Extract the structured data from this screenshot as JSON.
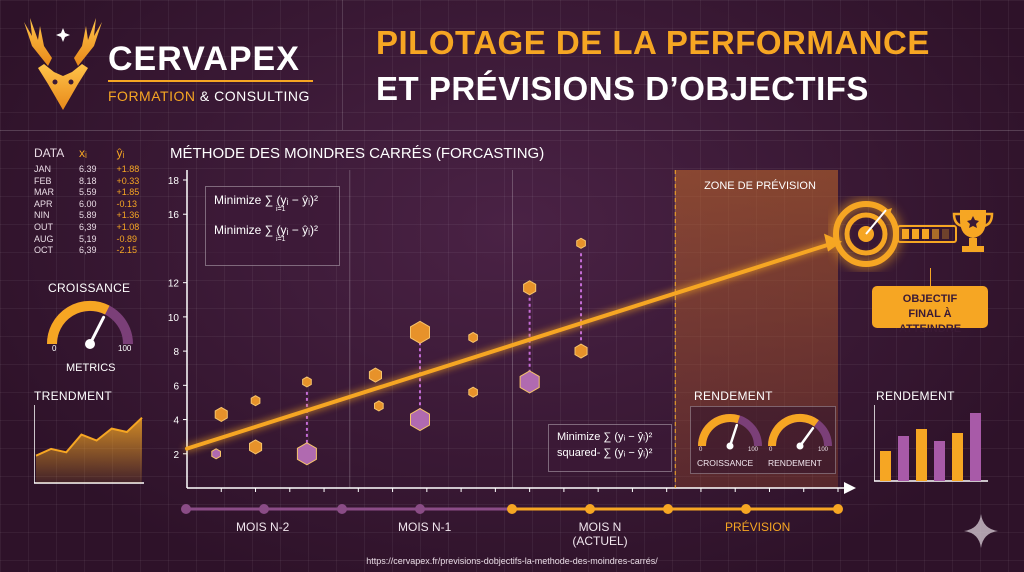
{
  "header": {
    "brand": "CERVAPEX",
    "brand_sub_1": "FORMATION",
    "brand_sub_2": "& CONSULTING",
    "title_line1": "PILOTAGE DE LA PERFORMANCE",
    "title_line2": "ET PRÉVISIONS D’OBJECTIFS"
  },
  "data_table": {
    "headers": [
      "DATA",
      "xᵢ",
      "ŷᵢ"
    ],
    "rows": [
      [
        "JAN",
        "6.39",
        "+1.88"
      ],
      [
        "FEB",
        "8.18",
        "+0.33"
      ],
      [
        "MAR",
        "5.59",
        "+1.85"
      ],
      [
        "APR",
        "6.00",
        "-0.13"
      ],
      [
        "NIN",
        "5.89",
        "+1.36"
      ],
      [
        "OUT",
        "6,39",
        "+1.08"
      ],
      [
        "AUG",
        "5,19",
        "-0.89"
      ],
      [
        "OCT",
        "6,39",
        "-2.15"
      ]
    ]
  },
  "gauge_left": {
    "title": "CROISSANCE",
    "min": "0",
    "max": "100",
    "caption": "METRICS",
    "value": 65
  },
  "trend": {
    "title": "TRENDMENT",
    "values": [
      30,
      38,
      34,
      55,
      48,
      62,
      58,
      75
    ]
  },
  "main_chart": {
    "title": "MÉTHODE DES MOINDRES CARRÉS (FORCASTING)",
    "formula_1": "Minimize ∑ (yᵢ − ŷᵢ)²",
    "formula_2": "Minimize ∑ (yᵢ − ŷᵢ)²",
    "formula_sub": "i=1",
    "formula_3": "Minimize ∑ (yᵢ − ŷᵢ)²",
    "formula_4": "squared- ∑ (yᵢ − ŷᵢ)²",
    "zone_label": "ZONE DE PRÉVISION",
    "rendement_label": "RENDEMENT",
    "objective": "OBJECTIF FINAL À ATTEINDRE",
    "timeline": [
      "MOIS N-2",
      "MOIS N-1",
      "MOIS N (ACTUEL)",
      "PRÉVISION"
    ]
  },
  "chart_data": {
    "type": "scatter",
    "title": "MÉTHODE DES MOINDRES CARRÉS (FORCASTING)",
    "y_ticks": [
      2,
      4,
      6,
      8,
      10,
      12,
      16,
      18
    ],
    "ylim": [
      0,
      18
    ],
    "xlim": [
      0,
      38
    ],
    "points": [
      {
        "x": 2.0,
        "y": 4.3
      },
      {
        "x": 1.7,
        "y": 2.0
      },
      {
        "x": 4.0,
        "y": 5.1
      },
      {
        "x": 4.0,
        "y": 2.4
      },
      {
        "x": 7.0,
        "y": 6.2
      },
      {
        "x": 7.0,
        "y": 2.0
      },
      {
        "x": 11.0,
        "y": 6.6
      },
      {
        "x": 11.2,
        "y": 4.8
      },
      {
        "x": 13.6,
        "y": 9.1
      },
      {
        "x": 13.6,
        "y": 4.0
      },
      {
        "x": 16.7,
        "y": 8.8
      },
      {
        "x": 16.7,
        "y": 5.6
      },
      {
        "x": 20.0,
        "y": 11.7
      },
      {
        "x": 20.0,
        "y": 6.2
      },
      {
        "x": 23.0,
        "y": 14.3
      },
      {
        "x": 23.0,
        "y": 8.0
      }
    ],
    "regression": {
      "x": [
        0,
        38
      ],
      "y": [
        2.3,
        14.4
      ]
    },
    "forecast_zone": [
      28.5,
      38
    ]
  },
  "gauges_panel": [
    {
      "label": "CROISSANCE",
      "min": "0",
      "max": "100",
      "value": 60
    },
    {
      "label": "RENDEMENT",
      "min": "0",
      "max": "100",
      "value": 70
    }
  ],
  "bars_right": {
    "title": "RENDEMENT",
    "values": [
      30,
      45,
      52,
      40,
      48,
      68
    ]
  },
  "url": "https://cervapex.fr/previsions-dobjectifs-la-methode-des-moindres-carrés/",
  "colors": {
    "accent": "#f6a623",
    "purple": "#8a4c86",
    "bg": "#3a1a35"
  }
}
